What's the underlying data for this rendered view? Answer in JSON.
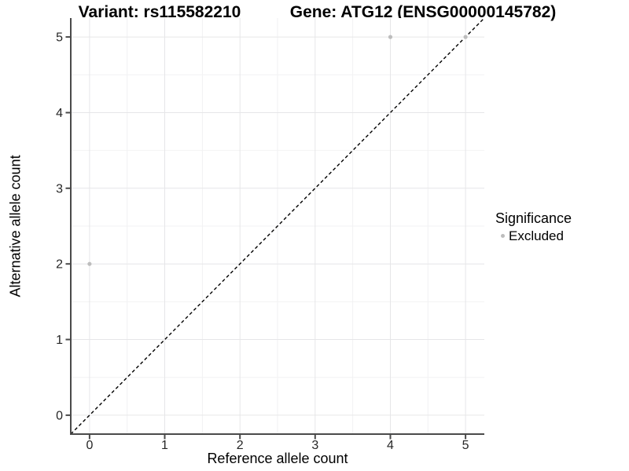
{
  "chart_data": {
    "type": "scatter",
    "title_left": "Variant: rs115582210",
    "title_right": "Gene: ATG12 (ENSG00000145782)",
    "xlabel": "Reference allele count",
    "ylabel": "Alternative allele count",
    "xlim": [
      -0.25,
      5.25
    ],
    "ylim": [
      -0.25,
      5.25
    ],
    "x_ticks": [
      0,
      1,
      2,
      3,
      4,
      5
    ],
    "y_ticks": [
      0,
      1,
      2,
      3,
      4,
      5
    ],
    "x_minor": [
      0.5,
      1.5,
      2.5,
      3.5,
      4.5
    ],
    "y_minor": [
      0.5,
      1.5,
      2.5,
      3.5,
      4.5
    ],
    "grid": "major+minor",
    "series": [
      {
        "name": "Excluded",
        "color": "#BDBDBD",
        "points": [
          {
            "x": 0,
            "y": 2
          },
          {
            "x": 4,
            "y": 5
          },
          {
            "x": 5,
            "y": 5
          }
        ]
      }
    ],
    "reference_line": {
      "type": "identity",
      "slope": 1,
      "intercept": 0,
      "linestyle": "dashed",
      "color": "#000000"
    },
    "legend": {
      "title": "Significance",
      "position": "right",
      "items": [
        {
          "label": "Excluded",
          "marker": "circle",
          "color": "#BDBDBD"
        }
      ]
    },
    "colors": {
      "background": "#FFFFFF",
      "panel_background": "#FFFFFF",
      "major_grid": "#E6E6E8",
      "minor_grid": "#F2F2F3",
      "axis_line": "#4A4A4A",
      "tick_mark": "#4A4A4A",
      "tick_label": "#262626",
      "point": "#BDBDBD"
    }
  }
}
